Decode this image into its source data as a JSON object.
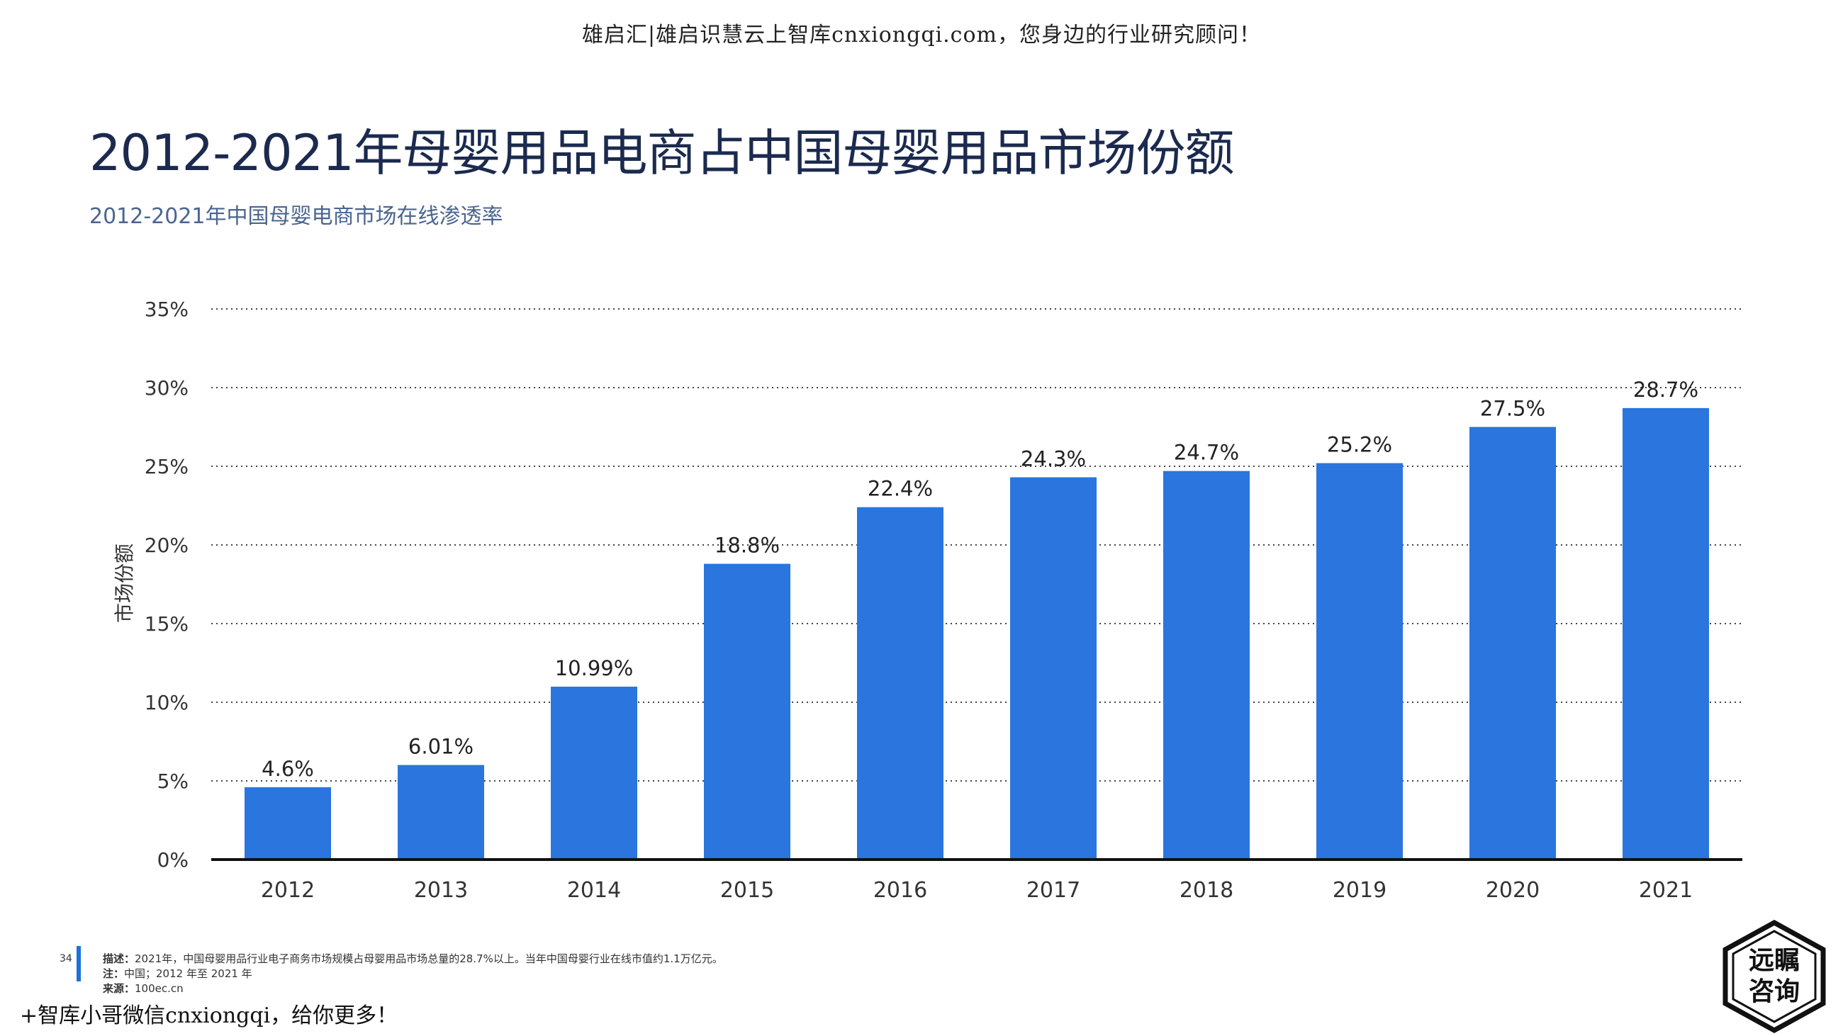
{
  "watermark_top": "雄启汇|雄启识慧云上智库cnxiongqi.com，您身边的行业研究顾问！",
  "title": "2012-2021年母婴用品电商占中国母婴用品市场份额",
  "subtitle": "2012-2021年中国母婴电商市场在线渗透率",
  "chart_data": {
    "type": "bar",
    "categories": [
      "2012",
      "2013",
      "2014",
      "2015",
      "2016",
      "2017",
      "2018",
      "2019",
      "2020",
      "2021"
    ],
    "values": [
      4.6,
      6.01,
      10.99,
      18.8,
      22.4,
      24.3,
      24.7,
      25.2,
      27.5,
      28.7
    ],
    "data_labels": [
      "4.6%",
      "6.01%",
      "10.99%",
      "18.8%",
      "22.4%",
      "24.3%",
      "24.7%",
      "25.2%",
      "27.5%",
      "28.7%"
    ],
    "ylabel": "市场份额",
    "ylim": [
      0,
      35
    ],
    "yticks": [
      0,
      5,
      10,
      15,
      20,
      25,
      30,
      35
    ],
    "ytick_labels": [
      "0%",
      "5%",
      "10%",
      "15%",
      "20%",
      "25%",
      "30%",
      "35%"
    ],
    "grid": true,
    "bar_color": "#2a75de"
  },
  "footer": {
    "page_number": "34",
    "description_label": "描述：",
    "description": "2021年，中国母婴用品行业电子商务市场规模占母婴用品市场总量的28.7%以上。当年中国母婴行业在线市值约1.1万亿元。",
    "note_label": "注：",
    "note": "中国；2012 年至 2021 年",
    "source_label": "来源：",
    "source": "100ec.cn"
  },
  "watermark_bottom": "+智库小哥微信cnxiongqi，给你更多！",
  "logo": {
    "line1": "远瞩",
    "line2": "咨询"
  }
}
